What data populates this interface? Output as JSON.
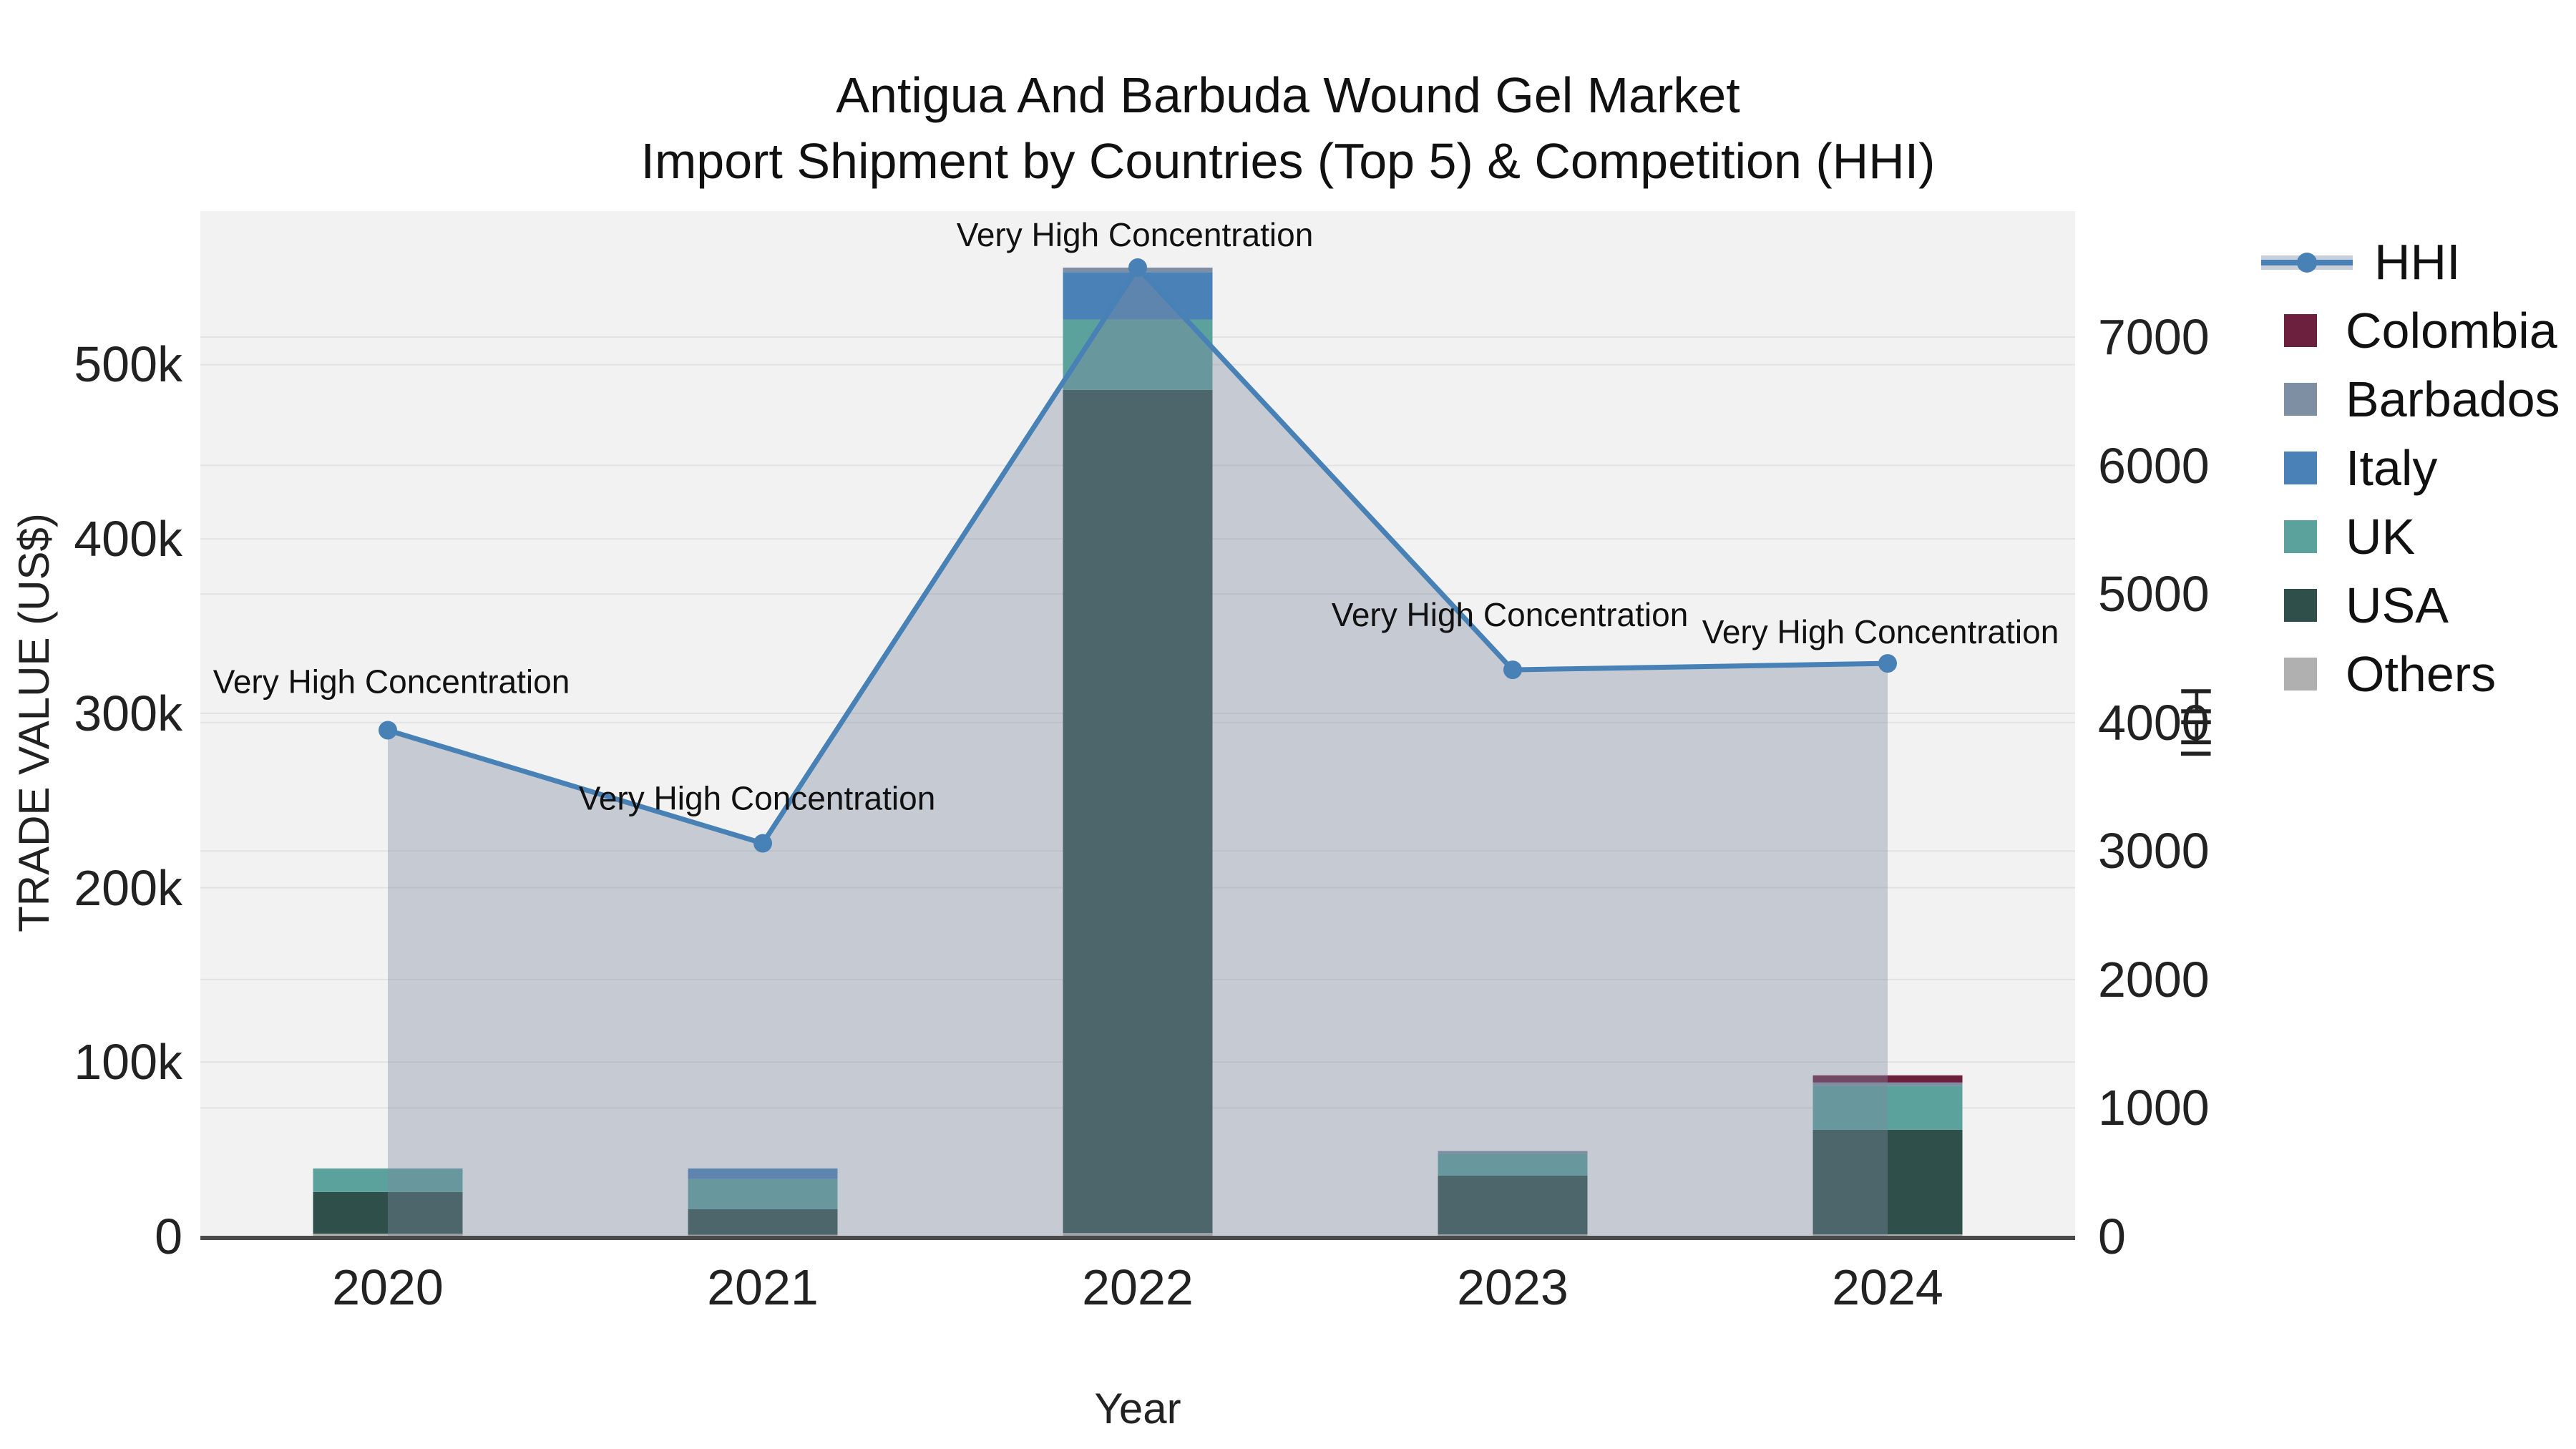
{
  "title": {
    "line1": "Antigua And Barbuda Wound Gel Market",
    "line2": "Import Shipment by Countries (Top 5) & Competition (HHI)"
  },
  "axes": {
    "x_title": "Year",
    "y_left_title": "TRADE VALUE (US$)",
    "y_right_title": "HHI"
  },
  "legend": {
    "items": [
      {
        "label": "HHI",
        "type": "line",
        "color": "#4881b5"
      },
      {
        "label": "Colombia",
        "type": "bar",
        "color": "#6d1f3e"
      },
      {
        "label": "Barbados",
        "type": "bar",
        "color": "#7e8fa3"
      },
      {
        "label": "Italy",
        "type": "bar",
        "color": "#4a81b6"
      },
      {
        "label": "UK",
        "type": "bar",
        "color": "#5ba19c"
      },
      {
        "label": "USA",
        "type": "bar",
        "color": "#2f4f4b"
      },
      {
        "label": "Others",
        "type": "bar",
        "color": "#b0b0b0"
      }
    ]
  },
  "chart_data": {
    "type": "bar+line",
    "title": "Antigua And Barbuda Wound Gel Market Import Shipment by Countries (Top 5) & Competition (HHI)",
    "xlabel": "Year",
    "ylabel_left": "TRADE VALUE (US$)",
    "ylabel_right": "HHI",
    "categories": [
      "2020",
      "2021",
      "2022",
      "2023",
      "2024"
    ],
    "bar_series": [
      {
        "name": "Colombia",
        "color": "#6d1f3e",
        "values": [
          0,
          0,
          0,
          0,
          4100
        ]
      },
      {
        "name": "Barbados",
        "color": "#7e8fa3",
        "values": [
          0,
          0,
          2600,
          1500,
          2000
        ]
      },
      {
        "name": "Italy",
        "color": "#4a81b6",
        "values": [
          0,
          6100,
          27200,
          0,
          0
        ]
      },
      {
        "name": "UK",
        "color": "#5ba19c",
        "values": [
          13500,
          17300,
          40300,
          12600,
          25100
        ]
      },
      {
        "name": "USA",
        "color": "#2f4f4b",
        "values": [
          23900,
          14600,
          483500,
          33700,
          60000
        ]
      },
      {
        "name": "Others",
        "color": "#b0b0b0",
        "values": [
          1600,
          1000,
          2000,
          1200,
          1200
        ]
      }
    ],
    "line_series": {
      "name": "HHI",
      "color": "#4881b5",
      "area_fill": "rgba(125,140,160,0.38)",
      "values": [
        3940,
        3060,
        7540,
        4410,
        4460
      ]
    },
    "annotations": {
      "texts": [
        "Very High Concentration",
        "Very High Concentration",
        "Very High Concentration",
        "Very High Concentration",
        "Very High Concentration"
      ],
      "dx": [
        5,
        -8,
        -4,
        -4,
        -10
      ],
      "dy": [
        -52,
        -47,
        -30,
        -61,
        -28
      ]
    },
    "y_left": {
      "max": 588000,
      "tick_values": [
        0,
        100000,
        200000,
        300000,
        400000,
        500000
      ],
      "tick_labels": [
        "0",
        "100k",
        "200k",
        "300k",
        "400k",
        "500k"
      ]
    },
    "y_right": {
      "max": 7980,
      "tick_values": [
        0,
        1000,
        2000,
        3000,
        4000,
        5000,
        6000,
        7000
      ],
      "tick_labels": [
        "0",
        "1000",
        "2000",
        "3000",
        "4000",
        "5000",
        "6000",
        "7000"
      ]
    },
    "grid": {
      "show": true,
      "color": "#e2e2e2"
    },
    "plot_bg": "#f2f2f2",
    "axis_line_color": "#4a4a4a",
    "legend_position": "right"
  }
}
